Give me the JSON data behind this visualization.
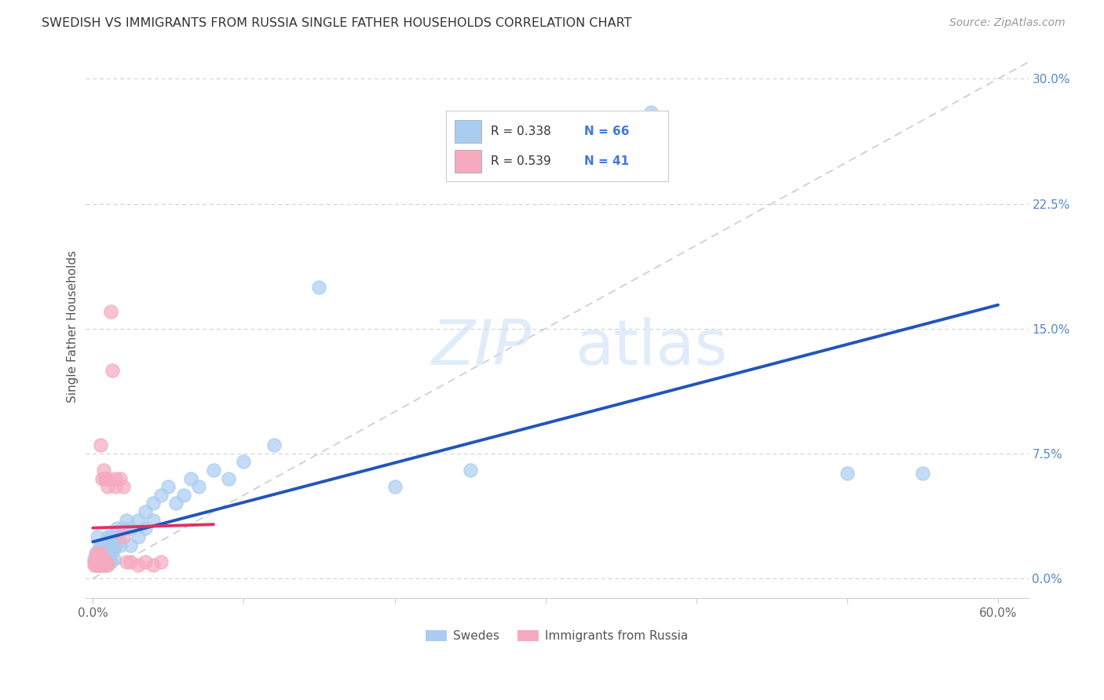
{
  "title": "SWEDISH VS IMMIGRANTS FROM RUSSIA SINGLE FATHER HOUSEHOLDS CORRELATION CHART",
  "source": "Source: ZipAtlas.com",
  "ylabel": "Single Father Households",
  "ytick_vals": [
    0.0,
    0.075,
    0.15,
    0.225,
    0.3
  ],
  "ytick_labels": [
    "0.0%",
    "7.5%",
    "15.0%",
    "22.5%",
    "30.0%"
  ],
  "xtick_vals": [
    0.0,
    0.1,
    0.2,
    0.3,
    0.4,
    0.5,
    0.6
  ],
  "xtick_labels": [
    "0.0%",
    "",
    "",
    "",
    "",
    "",
    "60.0%"
  ],
  "xlim": [
    -0.005,
    0.62
  ],
  "ylim": [
    -0.012,
    0.315
  ],
  "legend_r1": "R = 0.338",
  "legend_n1": "N = 66",
  "legend_r2": "R = 0.539",
  "legend_n2": "N = 41",
  "legend_label1": "Swedes",
  "legend_label2": "Immigrants from Russia",
  "swede_color": "#aaccf0",
  "russia_color": "#f5aabf",
  "swede_line_color": "#2255bb",
  "russia_line_color": "#dd3366",
  "diagonal_color": "#cccccc",
  "swede_scatter": [
    [
      0.001,
      0.012
    ],
    [
      0.002,
      0.01
    ],
    [
      0.002,
      0.008
    ],
    [
      0.003,
      0.025
    ],
    [
      0.003,
      0.015
    ],
    [
      0.003,
      0.01
    ],
    [
      0.004,
      0.018
    ],
    [
      0.004,
      0.012
    ],
    [
      0.004,
      0.008
    ],
    [
      0.005,
      0.02
    ],
    [
      0.005,
      0.015
    ],
    [
      0.005,
      0.01
    ],
    [
      0.005,
      0.008
    ],
    [
      0.006,
      0.018
    ],
    [
      0.006,
      0.012
    ],
    [
      0.006,
      0.008
    ],
    [
      0.007,
      0.02
    ],
    [
      0.007,
      0.015
    ],
    [
      0.007,
      0.01
    ],
    [
      0.008,
      0.018
    ],
    [
      0.008,
      0.012
    ],
    [
      0.008,
      0.008
    ],
    [
      0.009,
      0.022
    ],
    [
      0.009,
      0.015
    ],
    [
      0.009,
      0.01
    ],
    [
      0.01,
      0.025
    ],
    [
      0.01,
      0.018
    ],
    [
      0.01,
      0.012
    ],
    [
      0.011,
      0.02
    ],
    [
      0.012,
      0.025
    ],
    [
      0.012,
      0.015
    ],
    [
      0.012,
      0.01
    ],
    [
      0.013,
      0.022
    ],
    [
      0.014,
      0.018
    ],
    [
      0.014,
      0.012
    ],
    [
      0.015,
      0.025
    ],
    [
      0.015,
      0.02
    ],
    [
      0.016,
      0.03
    ],
    [
      0.017,
      0.025
    ],
    [
      0.018,
      0.02
    ],
    [
      0.02,
      0.03
    ],
    [
      0.022,
      0.035
    ],
    [
      0.025,
      0.03
    ],
    [
      0.025,
      0.02
    ],
    [
      0.03,
      0.035
    ],
    [
      0.03,
      0.025
    ],
    [
      0.035,
      0.04
    ],
    [
      0.035,
      0.03
    ],
    [
      0.04,
      0.045
    ],
    [
      0.04,
      0.035
    ],
    [
      0.045,
      0.05
    ],
    [
      0.05,
      0.055
    ],
    [
      0.055,
      0.045
    ],
    [
      0.06,
      0.05
    ],
    [
      0.065,
      0.06
    ],
    [
      0.07,
      0.055
    ],
    [
      0.08,
      0.065
    ],
    [
      0.09,
      0.06
    ],
    [
      0.1,
      0.07
    ],
    [
      0.12,
      0.08
    ],
    [
      0.15,
      0.175
    ],
    [
      0.2,
      0.055
    ],
    [
      0.25,
      0.065
    ],
    [
      0.37,
      0.28
    ],
    [
      0.5,
      0.063
    ],
    [
      0.55,
      0.063
    ]
  ],
  "russia_scatter": [
    [
      0.001,
      0.008
    ],
    [
      0.001,
      0.01
    ],
    [
      0.002,
      0.012
    ],
    [
      0.002,
      0.008
    ],
    [
      0.002,
      0.015
    ],
    [
      0.003,
      0.01
    ],
    [
      0.003,
      0.008
    ],
    [
      0.003,
      0.012
    ],
    [
      0.003,
      0.008
    ],
    [
      0.004,
      0.015
    ],
    [
      0.004,
      0.01
    ],
    [
      0.004,
      0.008
    ],
    [
      0.004,
      0.012
    ],
    [
      0.005,
      0.01
    ],
    [
      0.005,
      0.08
    ],
    [
      0.005,
      0.015
    ],
    [
      0.006,
      0.012
    ],
    [
      0.006,
      0.008
    ],
    [
      0.006,
      0.06
    ],
    [
      0.007,
      0.065
    ],
    [
      0.007,
      0.01
    ],
    [
      0.007,
      0.008
    ],
    [
      0.008,
      0.06
    ],
    [
      0.008,
      0.06
    ],
    [
      0.009,
      0.01
    ],
    [
      0.01,
      0.06
    ],
    [
      0.01,
      0.055
    ],
    [
      0.01,
      0.008
    ],
    [
      0.012,
      0.16
    ],
    [
      0.013,
      0.125
    ],
    [
      0.015,
      0.06
    ],
    [
      0.015,
      0.055
    ],
    [
      0.018,
      0.06
    ],
    [
      0.02,
      0.055
    ],
    [
      0.02,
      0.025
    ],
    [
      0.022,
      0.01
    ],
    [
      0.025,
      0.01
    ],
    [
      0.03,
      0.008
    ],
    [
      0.035,
      0.01
    ],
    [
      0.04,
      0.008
    ],
    [
      0.045,
      0.01
    ]
  ]
}
